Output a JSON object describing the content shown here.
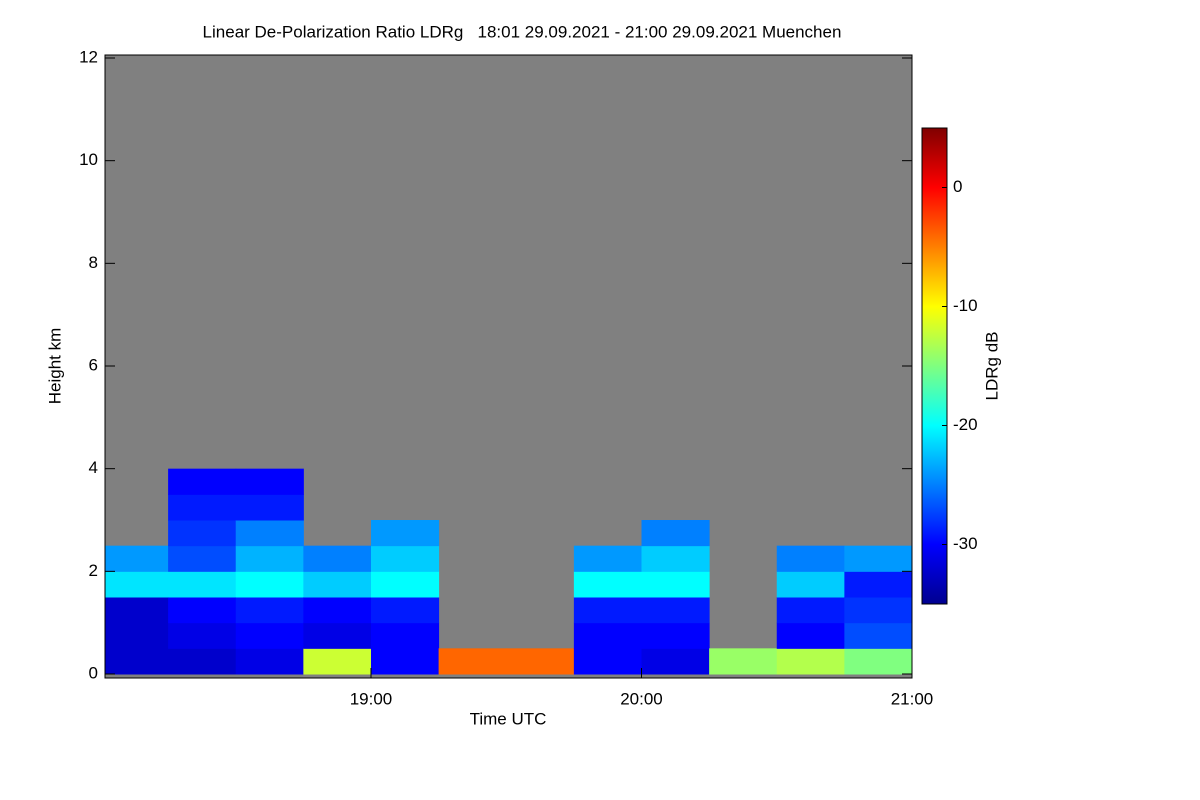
{
  "chart_data": {
    "type": "heatmap",
    "title": "Linear De-Polarization Ratio LDRg   18:01 29.09.2021 - 21:00 29.09.2021 Muenchen",
    "x_label": "Time UTC",
    "y_label": "Height km",
    "colorbar_label": "LDRg dB",
    "colormap": "jet",
    "missing_color": "#808080",
    "xlim": [
      18.0167,
      21.0
    ],
    "xticks": [
      {
        "value": 19,
        "label": "19:00"
      },
      {
        "value": 20,
        "label": "20:00"
      },
      {
        "value": 21,
        "label": "21:00"
      }
    ],
    "ylim": [
      0,
      12
    ],
    "yticks": [
      0,
      2,
      4,
      6,
      8,
      10,
      12
    ],
    "zlim": [
      -35,
      5
    ],
    "zticks": [
      0,
      -10,
      -20,
      -30
    ],
    "xbins": [
      18.0,
      18.25,
      18.5,
      18.75,
      19.0,
      19.25,
      19.5,
      19.75,
      20.0,
      20.25,
      20.5,
      20.75,
      21.0
    ],
    "ybins": [
      0,
      0.5,
      1,
      1.5,
      2,
      2.5,
      3,
      3.5,
      4,
      4.5
    ],
    "z": [
      [
        -32,
        -32,
        -32,
        -21,
        -24,
        null,
        null,
        null,
        null
      ],
      [
        -32,
        -31,
        -30,
        -21,
        -27,
        -28,
        -29,
        -30,
        null
      ],
      [
        -31,
        -30,
        -29,
        -20,
        -23,
        -25,
        -29,
        -30,
        null
      ],
      [
        -12,
        -31,
        -30,
        -22,
        -25,
        null,
        null,
        null,
        null
      ],
      [
        -30,
        -30,
        -29,
        -20,
        -22,
        -24,
        null,
        null,
        null
      ],
      [
        -4,
        null,
        null,
        null,
        null,
        null,
        null,
        null,
        null
      ],
      [
        -4,
        null,
        null,
        null,
        null,
        null,
        null,
        null,
        null
      ],
      [
        -30,
        -30,
        -29,
        -20,
        -24,
        null,
        null,
        null,
        null
      ],
      [
        -31,
        -30,
        -29,
        -20,
        -22,
        -25,
        null,
        null,
        null
      ],
      [
        -14,
        null,
        null,
        null,
        null,
        null,
        null,
        null,
        null
      ],
      [
        -13,
        -30,
        -29,
        -22,
        -25,
        null,
        null,
        null,
        null
      ],
      [
        -15,
        -27,
        -28,
        -29,
        -24,
        null,
        null,
        null,
        null
      ]
    ]
  }
}
